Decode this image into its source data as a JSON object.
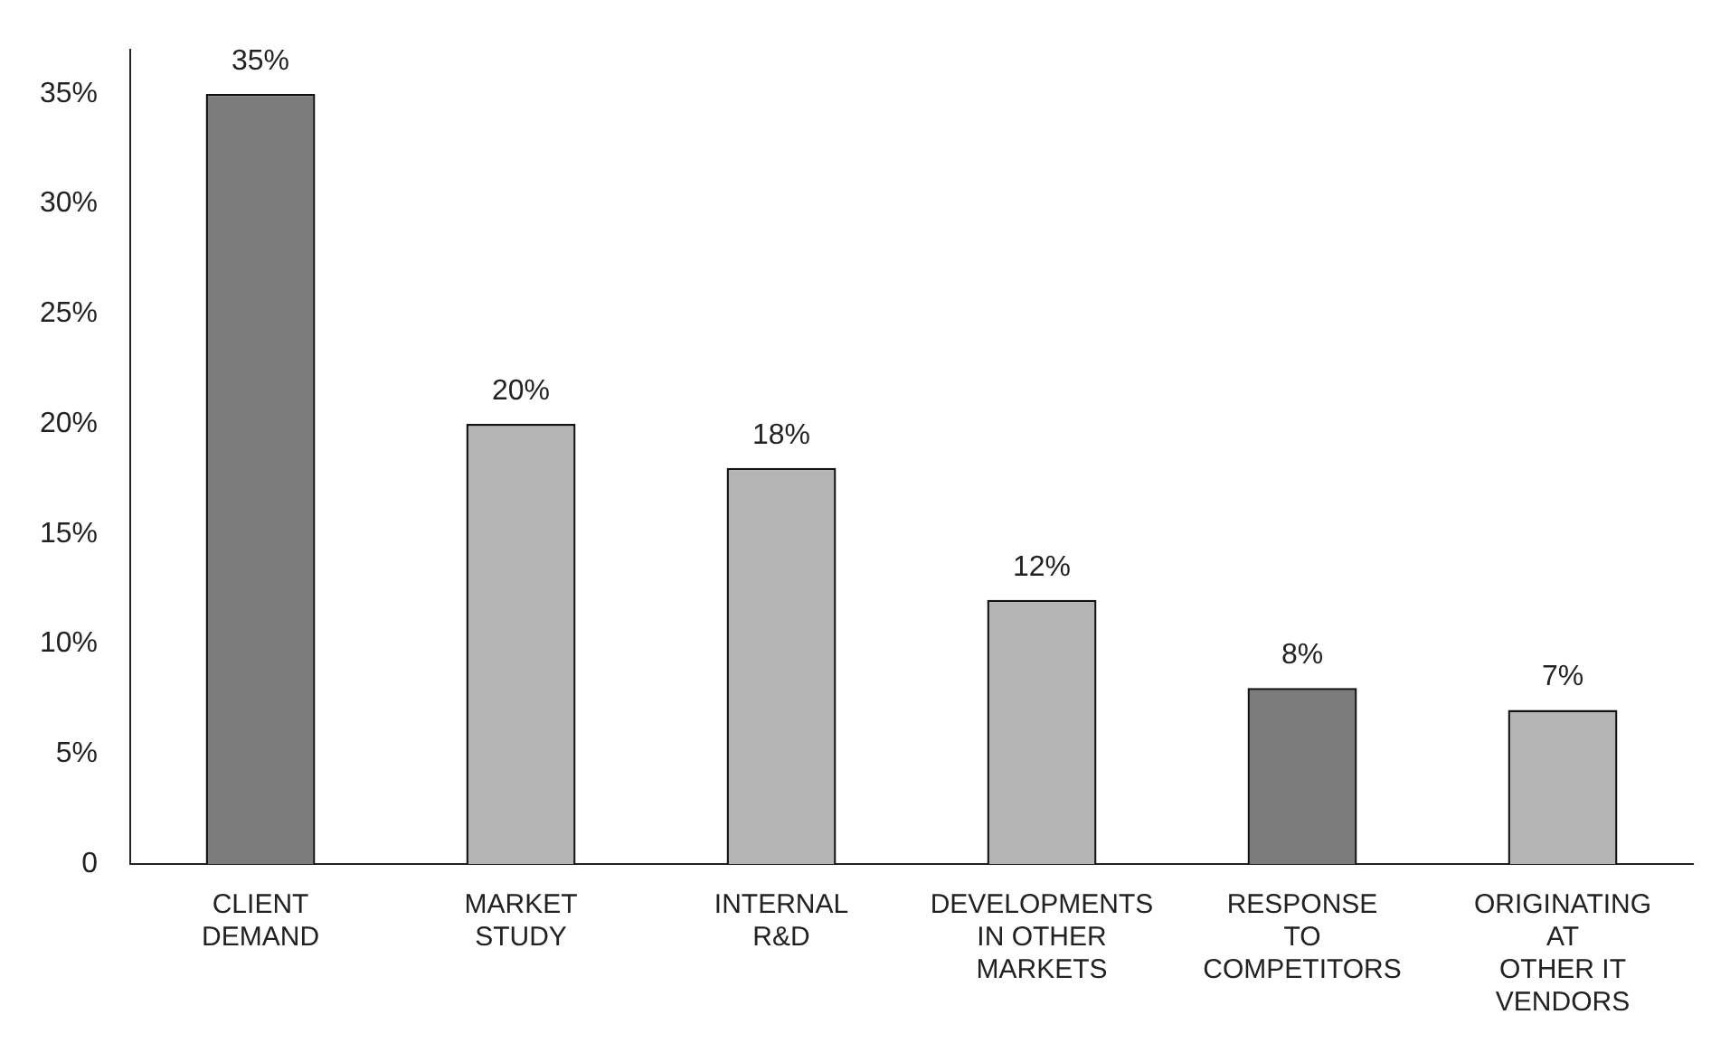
{
  "chart_data": {
    "type": "bar",
    "categories": [
      "CLIENT\nDEMAND",
      "MARKET\nSTUDY",
      "INTERNAL\nR&D",
      "DEVELOPMENTS\nIN OTHER\nMARKETS",
      "RESPONSE\nTO\nCOMPETITORS",
      "ORIGINATING\nAT\nOTHER IT\nVENDORS"
    ],
    "values": [
      35,
      20,
      18,
      12,
      8,
      7
    ],
    "colors": [
      "#7c7c7c",
      "#b4b4b4",
      "#b4b4b4",
      "#b4b4b4",
      "#7c7c7c",
      "#b4b4b4"
    ],
    "value_labels": [
      "35%",
      "20%",
      "18%",
      "12%",
      "8%",
      "7%"
    ],
    "ylim": [
      0,
      37
    ],
    "yticks": [
      0,
      {
        "value": 5,
        "label": "5%"
      },
      {
        "value": 10,
        "label": "10%"
      },
      {
        "value": 15,
        "label": "15%"
      },
      {
        "value": 20,
        "label": "20%"
      },
      {
        "value": 25,
        "label": "25%"
      },
      {
        "value": 30,
        "label": "30%"
      },
      {
        "value": 35,
        "label": "35%"
      }
    ],
    "grid": false,
    "legend": false
  }
}
